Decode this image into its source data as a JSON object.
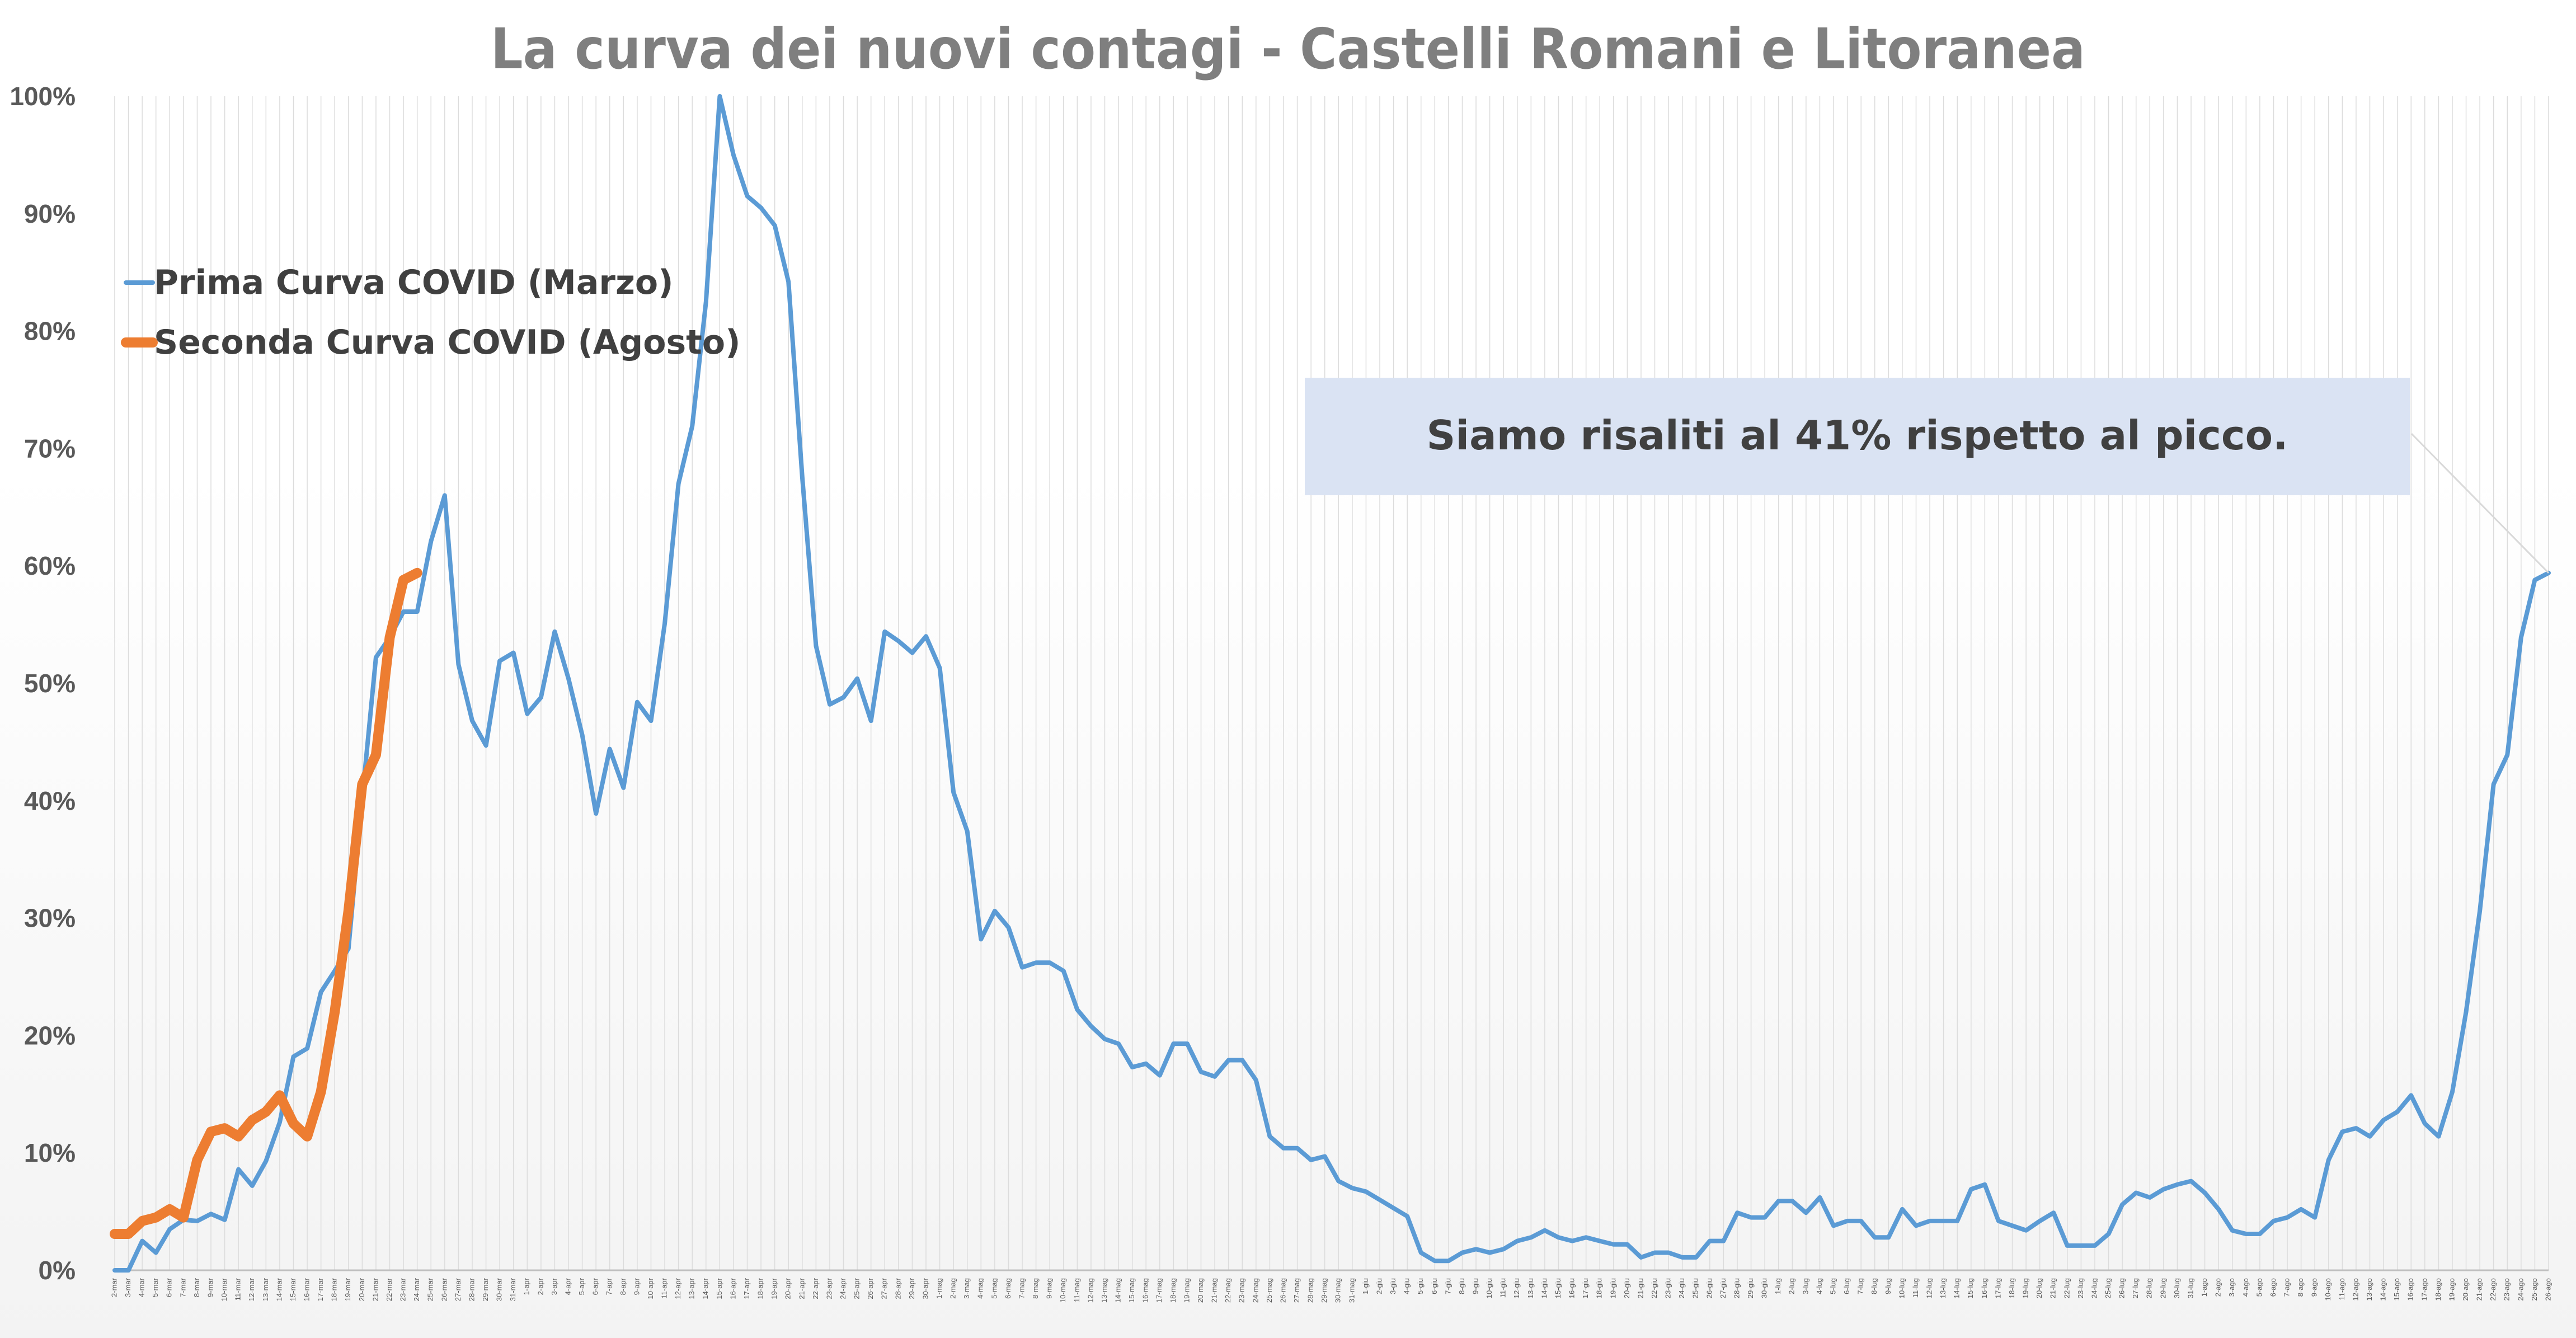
{
  "chart_data": {
    "type": "line",
    "title": "La curva dei nuovi contagi - Castelli Romani e Litoranea",
    "xlabel": "",
    "ylabel": "",
    "ylim": [
      0,
      100
    ],
    "y_ticks": [
      "0%",
      "10%",
      "20%",
      "30%",
      "40%",
      "50%",
      "60%",
      "70%",
      "80%",
      "90%",
      "100%"
    ],
    "grid": "vertical",
    "legend_position": "top-left",
    "colors": {
      "series_1": "#5B9BD5",
      "series_2": "#ED7D31",
      "annotation_box": "#DAE3F3",
      "title": "#7F7F7F",
      "axis_text": "#595959"
    },
    "annotation": {
      "text": "Siamo risaliti al 41% rispetto al picco."
    },
    "x_labels": [
      "2-mar",
      "3-mar",
      "4-mar",
      "5-mar",
      "6-mar",
      "7-mar",
      "8-mar",
      "9-mar",
      "10-mar",
      "11-mar",
      "12-mar",
      "13-mar",
      "14-mar",
      "15-mar",
      "16-mar",
      "17-mar",
      "18-mar",
      "19-mar",
      "20-mar",
      "21-mar",
      "22-mar",
      "23-mar",
      "24-mar",
      "25-mar",
      "26-mar",
      "27-mar",
      "28-mar",
      "29-mar",
      "30-mar",
      "31-mar",
      "1-apr",
      "2-apr",
      "3-apr",
      "4-apr",
      "5-apr",
      "6-apr",
      "7-apr",
      "8-apr",
      "9-apr",
      "10-apr",
      "11-apr",
      "12-apr",
      "13-apr",
      "14-apr",
      "15-apr",
      "16-apr",
      "17-apr",
      "18-apr",
      "19-apr",
      "20-apr",
      "21-apr",
      "22-apr",
      "23-apr",
      "24-apr",
      "25-apr",
      "26-apr",
      "27-apr",
      "28-apr",
      "29-apr",
      "30-apr",
      "1-mag",
      "2-mag",
      "3-mag",
      "4-mag",
      "5-mag",
      "6-mag",
      "7-mag",
      "8-mag",
      "9-mag",
      "10-mag",
      "11-mag",
      "12-mag",
      "13-mag",
      "14-mag",
      "15-mag",
      "16-mag",
      "17-mag",
      "18-mag",
      "19-mag",
      "20-mag",
      "21-mag",
      "22-mag",
      "23-mag",
      "24-mag",
      "25-mag",
      "26-mag",
      "27-mag",
      "28-mag",
      "29-mag",
      "30-mag",
      "31-mag",
      "1-giu",
      "2-giu",
      "3-giu",
      "4-giu",
      "5-giu",
      "6-giu",
      "7-giu",
      "8-giu",
      "9-giu",
      "10-giu",
      "11-giu",
      "12-giu",
      "13-giu",
      "14-giu",
      "15-giu",
      "16-giu",
      "17-giu",
      "18-giu",
      "19-giu",
      "20-giu",
      "21-giu",
      "22-giu",
      "23-giu",
      "24-giu",
      "25-giu",
      "26-giu",
      "27-giu",
      "28-giu",
      "29-giu",
      "30-giu",
      "1-lug",
      "2-lug",
      "3-lug",
      "4-lug",
      "5-lug",
      "6-lug",
      "7-lug",
      "8-lug",
      "9-lug",
      "10-lug",
      "11-lug",
      "12-lug",
      "13-lug",
      "14-lug",
      "15-lug",
      "16-lug",
      "17-lug",
      "18-lug",
      "19-lug",
      "20-lug",
      "21-lug",
      "22-lug",
      "23-lug",
      "24-lug",
      "25-lug",
      "26-lug",
      "27-lug",
      "28-lug",
      "29-lug",
      "30-lug",
      "31-lug",
      "1-ago",
      "2-ago",
      "3-ago",
      "4-ago",
      "5-ago",
      "6-ago",
      "7-ago",
      "8-ago",
      "9-ago",
      "10-ago",
      "11-ago",
      "12-ago",
      "13-ago",
      "14-ago",
      "15-ago",
      "16-ago",
      "17-ago",
      "18-ago",
      "19-ago",
      "20-ago",
      "21-ago",
      "22-ago",
      "23-ago",
      "24-ago",
      "25-ago",
      "26-ago"
    ],
    "series": [
      {
        "name": "Prima Curva COVID (Marzo)",
        "color": "#5B9BD5",
        "values": [
          0,
          0,
          2.5,
          1.5,
          3.5,
          4.3,
          4.2,
          4.8,
          4.3,
          8.6,
          7.2,
          9.3,
          12.6,
          18.2,
          18.9,
          23.7,
          25.5,
          27.4,
          40.2,
          52.2,
          53.9,
          56.1,
          56.1,
          62.1,
          66.0,
          51.6,
          46.8,
          44.7,
          51.9,
          52.6,
          47.4,
          48.8,
          54.4,
          50.4,
          45.6,
          38.9,
          44.4,
          41.1,
          48.4,
          46.8,
          55.1,
          67.0,
          71.9,
          82.5,
          100,
          95.0,
          91.5,
          90.5,
          89.0,
          84.2,
          67.6,
          53.2,
          48.2,
          48.8,
          50.4,
          46.8,
          54.4,
          53.6,
          52.6,
          54.0,
          51.3,
          40.7,
          37.4,
          28.2,
          30.6,
          29.2,
          25.8,
          26.2,
          26.2,
          25.5,
          22.2,
          20.8,
          19.7,
          19.3,
          17.3,
          17.6,
          16.6,
          19.3,
          19.3,
          16.9,
          16.5,
          17.9,
          17.9,
          16.2,
          11.4,
          10.4,
          10.4,
          9.4,
          9.7,
          7.6,
          7.0,
          6.7,
          6.0,
          5.3,
          4.6,
          1.5,
          0.8,
          0.8,
          1.5,
          1.8,
          1.5,
          1.8,
          2.5,
          2.8,
          3.4,
          2.8,
          2.5,
          2.8,
          2.5,
          2.2,
          2.2,
          1.1,
          1.5,
          1.5,
          1.1,
          1.1,
          2.5,
          2.5,
          4.9,
          4.5,
          4.5,
          5.9,
          5.9,
          4.9,
          6.2,
          3.8,
          4.2,
          4.2,
          2.8,
          2.8,
          5.2,
          3.8,
          4.2,
          4.2,
          4.2,
          6.9,
          7.3,
          4.2,
          3.8,
          3.4,
          4.2,
          4.9,
          2.1,
          2.1,
          2.1,
          3.1,
          5.6,
          6.6,
          6.2,
          6.9,
          7.3,
          7.6,
          6.6,
          5.2,
          3.4,
          3.1,
          3.1,
          4.2,
          4.5,
          5.2,
          4.5,
          9.4,
          11.8,
          12.1,
          11.4,
          12.8,
          13.5,
          14.9,
          12.5,
          11.4,
          15.2,
          22.0,
          30.6,
          41.4,
          43.9,
          53.9,
          58.8,
          59.4
        ]
      },
      {
        "name": "Seconda Curva COVID (Agosto)",
        "color": "#ED7D31",
        "values": [
          3.1,
          3.1,
          4.2,
          4.5,
          5.2,
          4.5,
          9.4,
          11.8,
          12.1,
          11.4,
          12.8,
          13.5,
          14.9,
          12.5,
          11.4,
          15.2,
          22.0,
          30.6,
          41.4,
          43.9,
          53.9,
          58.8,
          59.4
        ]
      }
    ]
  }
}
